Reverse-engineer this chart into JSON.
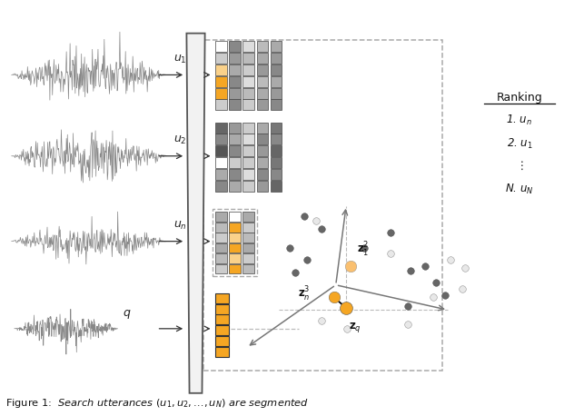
{
  "fig_width": 6.32,
  "fig_height": 4.58,
  "bg_color": "#ffffff",
  "orange_color": "#F5A623",
  "orange_light": "#FAD18A",
  "wall_color": "#F0F0F0",
  "wall_edge": "#555555"
}
